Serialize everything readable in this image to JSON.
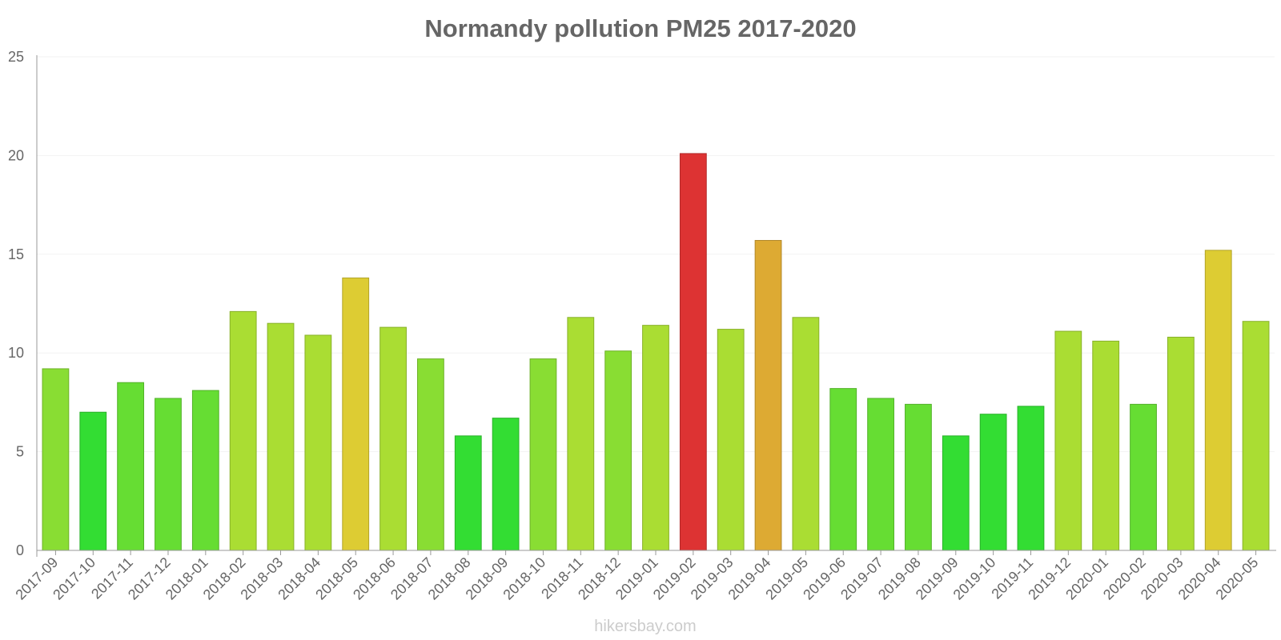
{
  "chart_data": {
    "type": "bar",
    "title": "Normandy pollution PM25 2017-2020",
    "xlabel": "",
    "ylabel": "",
    "ylim": [
      0,
      25
    ],
    "yticks": [
      0,
      5,
      10,
      15,
      20,
      25
    ],
    "grid": true,
    "legend": "none",
    "categories": [
      "2017-09",
      "2017-10",
      "2017-11",
      "2017-12",
      "2018-01",
      "2018-02",
      "2018-03",
      "2018-04",
      "2018-05",
      "2018-06",
      "2018-07",
      "2018-08",
      "2018-09",
      "2018-10",
      "2018-11",
      "2018-12",
      "2019-01",
      "2019-02",
      "2019-03",
      "2019-04",
      "2019-05",
      "2019-06",
      "2019-07",
      "2019-08",
      "2019-09",
      "2019-10",
      "2019-11",
      "2019-12",
      "2020-01",
      "2020-02",
      "2020-03",
      "2020-04",
      "2020-05"
    ],
    "values": [
      9.2,
      7,
      8.5,
      7.7,
      8.1,
      12.1,
      11.5,
      10.9,
      13.8,
      11.3,
      9.7,
      5.8,
      6.7,
      9.7,
      11.8,
      10.1,
      11.4,
      20.1,
      11.2,
      15.7,
      11.8,
      8.2,
      7.7,
      7.4,
      5.8,
      6.9,
      7.3,
      11.1,
      10.6,
      7.4,
      10.8,
      15.2,
      11.6
    ],
    "colors": [
      "#89dd33",
      "#33dd33",
      "#66dd33",
      "#66dd33",
      "#66dd33",
      "#aadd33",
      "#aadd33",
      "#aadd33",
      "#ddcc33",
      "#aadd33",
      "#89dd33",
      "#33dd33",
      "#33dd33",
      "#89dd33",
      "#aadd33",
      "#89dd33",
      "#aadd33",
      "#dd3333",
      "#aadd33",
      "#ddaa33",
      "#aadd33",
      "#66dd33",
      "#66dd33",
      "#66dd33",
      "#33dd33",
      "#33dd33",
      "#33dd33",
      "#aadd33",
      "#aadd33",
      "#66dd33",
      "#aadd33",
      "#ddcc33",
      "#aadd33"
    ]
  },
  "credit": "hikersbay.com"
}
